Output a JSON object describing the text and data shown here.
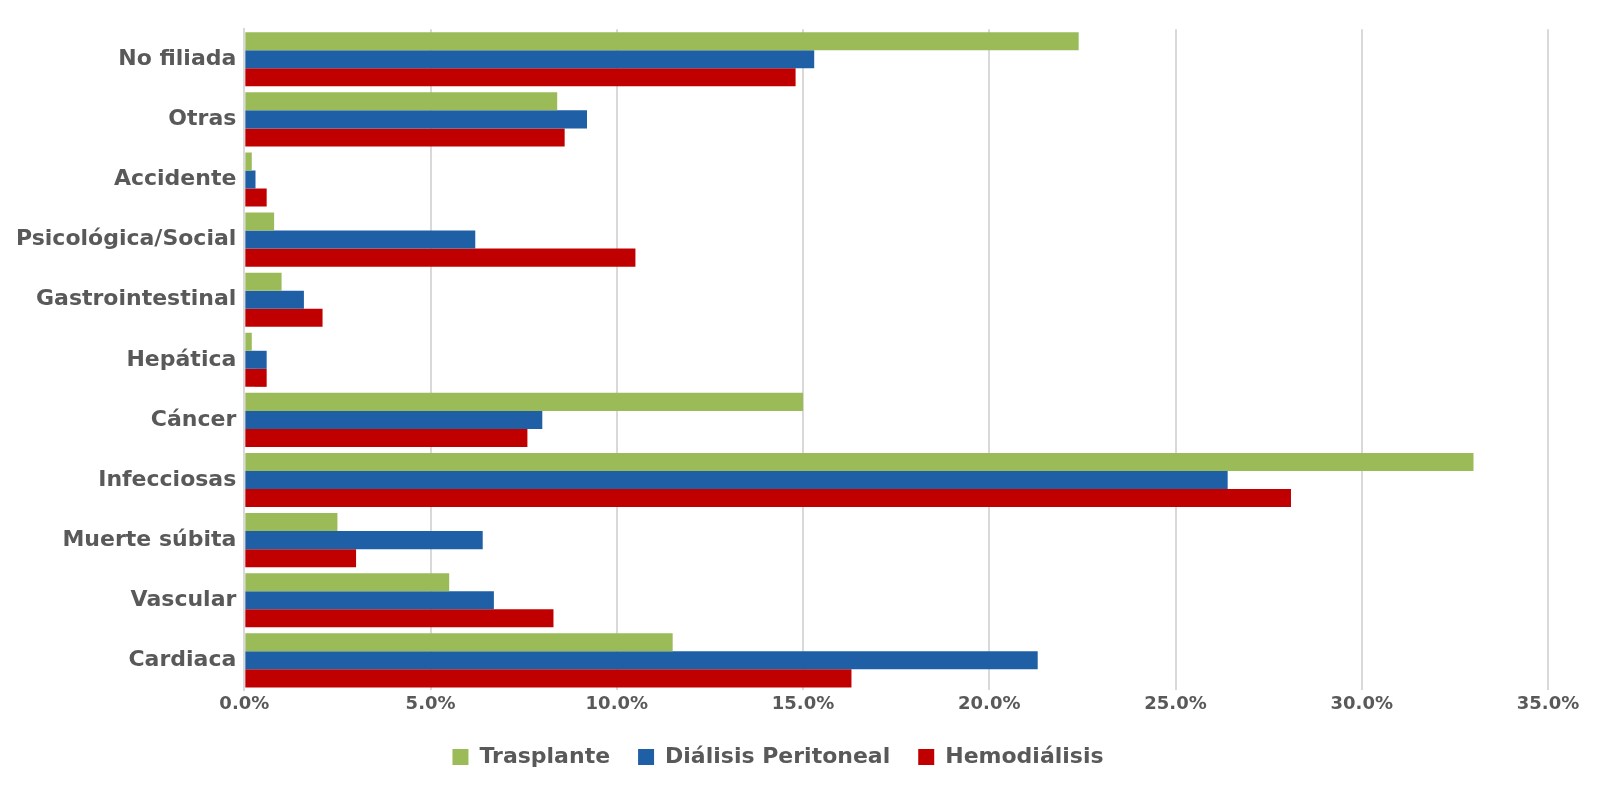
{
  "chart_data": {
    "type": "bar",
    "orientation": "horizontal",
    "categories": [
      "No filiada",
      "Otras",
      "Accidente",
      "Psicológica/Social",
      "Gastrointestinal",
      "Hepática",
      "Cáncer",
      "Infecciosas",
      "Muerte súbita",
      "Vascular",
      "Cardiaca"
    ],
    "series": [
      {
        "name": "Trasplante",
        "color": "#9bbb59",
        "values": [
          22.4,
          8.4,
          0.2,
          0.8,
          1.0,
          0.2,
          15.0,
          33.0,
          2.5,
          5.5,
          11.5
        ]
      },
      {
        "name": "Diálisis Peritoneal",
        "color": "#1f5fa6",
        "values": [
          15.3,
          9.2,
          0.3,
          6.2,
          1.6,
          0.6,
          8.0,
          26.4,
          6.4,
          6.7,
          21.3
        ]
      },
      {
        "name": "Hemodiálisis",
        "color": "#c00000",
        "values": [
          14.8,
          8.6,
          0.6,
          10.5,
          2.1,
          0.6,
          7.6,
          28.1,
          3.0,
          8.3,
          16.3
        ]
      }
    ],
    "xlim": [
      0,
      35
    ],
    "xticks": [
      {
        "value": 0,
        "label": "0.0%"
      },
      {
        "value": 5,
        "label": "5.0%"
      },
      {
        "value": 10,
        "label": "10.0%"
      },
      {
        "value": 15,
        "label": "15.0%"
      },
      {
        "value": 20,
        "label": "20.0%"
      },
      {
        "value": 25,
        "label": "25.0%"
      },
      {
        "value": 30,
        "label": "30.0%"
      },
      {
        "value": 35,
        "label": "35.0%"
      }
    ],
    "grid": "x",
    "legend": "bottom"
  }
}
